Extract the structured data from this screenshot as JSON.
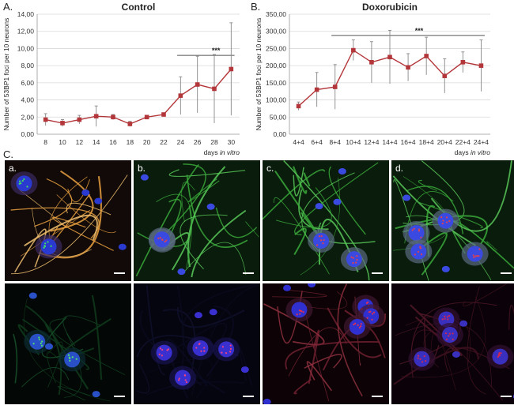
{
  "panels": {
    "a_label": "A.",
    "b_label": "B.",
    "c_label": "C."
  },
  "chart_data": [
    {
      "type": "line",
      "title": "Control",
      "ylabel": "Number of 53BP1 foci per 10 neurons",
      "xlabel_prefix": "days ",
      "xlabel_italic": "in vitro",
      "categories": [
        "8",
        "10",
        "12",
        "14",
        "16",
        "18",
        "20",
        "22",
        "24",
        "26",
        "28",
        "30"
      ],
      "series": [
        {
          "values": [
            1.7,
            1.3,
            1.7,
            2.1,
            2.0,
            1.2,
            2.0,
            2.3,
            4.5,
            5.8,
            5.3,
            7.6
          ],
          "errors": [
            0.7,
            0.4,
            0.5,
            1.2,
            0.3,
            0.3,
            0.2,
            0.2,
            2.2,
            3.3,
            4.0,
            5.4
          ]
        }
      ],
      "ylim": [
        0,
        14
      ],
      "yticks": [
        "0,00",
        "2,00",
        "4,00",
        "6,00",
        "8,00",
        "10,00",
        "12,00",
        "14,00"
      ],
      "grid": true,
      "annotation": {
        "text": "***",
        "from_index": 8,
        "to_index": 11,
        "y": 9.2
      },
      "color": "#b3363a"
    },
    {
      "type": "line",
      "title": "Doxorubicin",
      "ylabel": "Number of 53BP1 foci per 10 neurons",
      "xlabel_prefix": "days ",
      "xlabel_italic": "in vitro",
      "categories": [
        "4+4",
        "6+4",
        "8+4",
        "10+4",
        "12+4",
        "14+4",
        "16+4",
        "18+4",
        "20+4",
        "22+4",
        "24+4"
      ],
      "series": [
        {
          "values": [
            82,
            130,
            138,
            245,
            210,
            225,
            195,
            228,
            170,
            210,
            200
          ],
          "errors": [
            12,
            50,
            65,
            30,
            60,
            78,
            40,
            55,
            50,
            30,
            75
          ]
        }
      ],
      "ylim": [
        0,
        350
      ],
      "yticks": [
        "0,00",
        "50,00",
        "100,00",
        "150,00",
        "200,00",
        "250,00",
        "300,00",
        "350,00"
      ],
      "grid": true,
      "annotation": {
        "text": "***",
        "from_index": 2,
        "to_index": 10,
        "y": 288
      },
      "color": "#b3363a"
    }
  ],
  "micrographs": {
    "tiles": [
      {
        "label": "a.",
        "theme": "orange"
      },
      {
        "label": "b.",
        "theme": "green"
      },
      {
        "label": "c.",
        "theme": "green"
      },
      {
        "label": "d.",
        "theme": "green"
      },
      {
        "label": "",
        "theme": "dark-green"
      },
      {
        "label": "",
        "theme": "dark-blue"
      },
      {
        "label": "",
        "theme": "red"
      },
      {
        "label": "",
        "theme": "dark-red"
      }
    ]
  }
}
